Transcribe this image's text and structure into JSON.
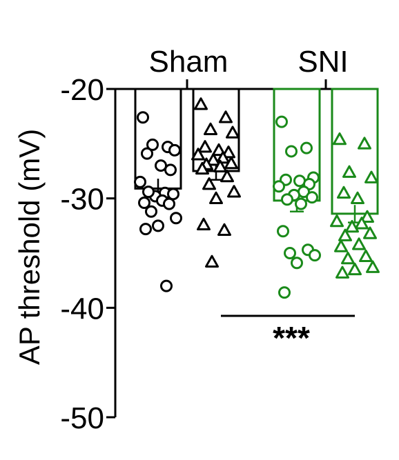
{
  "chart_data": {
    "type": "bar",
    "ylabel": "AP threshold (mV)",
    "yticks": [
      -20,
      -30,
      -40,
      -50
    ],
    "ylim": [
      -50,
      -20
    ],
    "group_labels": [
      "Sham",
      "SNI"
    ],
    "significance": "***",
    "colors": {
      "Sham": "#000000",
      "SNI": "#1a8a1a"
    },
    "bars": [
      {
        "group": "Sham",
        "marker": "circle",
        "mean": -29.1,
        "sem": 0.9,
        "points": [
          -22.6,
          -25.3,
          -25.1,
          -25.6,
          -25.9,
          -27.0,
          -27.4,
          -28.5,
          -29.5,
          -29.8,
          -29.6,
          -29.4,
          -30.2,
          -30.4,
          -30.5,
          -31.2,
          -31.8,
          -32.5,
          -32.8,
          -38.0
        ]
      },
      {
        "group": "Sham",
        "marker": "triangle",
        "mean": -27.5,
        "sem": 0.8,
        "points": [
          -21.4,
          -22.6,
          -23.7,
          -24.0,
          -25.3,
          -25.6,
          -25.8,
          -26.0,
          -26.3,
          -26.5,
          -26.8,
          -26.9,
          -27.1,
          -27.3,
          -28.0,
          -28.7,
          -29.4,
          -30.0,
          -32.4,
          -32.9,
          -35.8
        ]
      },
      {
        "group": "SNI",
        "marker": "circle",
        "mean": -30.2,
        "sem": 1.0,
        "points": [
          -23.0,
          -25.4,
          -25.7,
          -28.1,
          -28.3,
          -28.4,
          -28.7,
          -28.9,
          -29.4,
          -29.7,
          -29.9,
          -30.1,
          -30.5,
          -33.0,
          -34.7,
          -35.0,
          -35.2,
          -35.9,
          -38.6
        ]
      },
      {
        "group": "SNI",
        "marker": "triangle",
        "mean": -31.4,
        "sem": 0.8,
        "points": [
          -24.6,
          -25.0,
          -27.6,
          -28.1,
          -29.5,
          -30.0,
          -31.7,
          -32.1,
          -32.3,
          -32.6,
          -33.2,
          -33.4,
          -34.2,
          -34.4,
          -35.3,
          -35.5,
          -36.3,
          -36.5,
          -36.8
        ]
      }
    ]
  }
}
